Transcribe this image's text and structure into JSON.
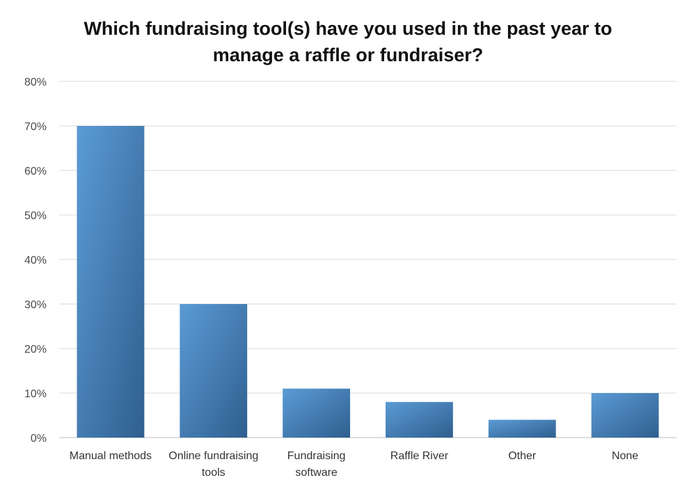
{
  "chart_data": {
    "type": "bar",
    "title": "Which fundraising tool(s) have you used in the past year to manage a raffle or fundraiser?",
    "title_lines": [
      "Which fundraising tool(s) have you used in the past year to",
      "manage a raffle or fundraiser?"
    ],
    "categories": [
      [
        "Manual methods"
      ],
      [
        "Online fundraising",
        "tools"
      ],
      [
        "Fundraising",
        "software"
      ],
      [
        "Raffle River"
      ],
      [
        "Other"
      ],
      [
        "None"
      ]
    ],
    "values": [
      70,
      30,
      11,
      8,
      4,
      10
    ],
    "ylim": [
      0,
      80
    ],
    "yticks": [
      0,
      10,
      20,
      30,
      40,
      50,
      60,
      70,
      80
    ],
    "ytick_labels": [
      "0%",
      "10%",
      "20%",
      "30%",
      "40%",
      "50%",
      "60%",
      "70%",
      "80%"
    ],
    "xlabel": "",
    "ylabel": "",
    "grid": true,
    "legend": "none",
    "bar_color_light": "#5b9bd5",
    "bar_color_dark": "#2f5f8f",
    "grid_color": "#d9d9d9"
  }
}
